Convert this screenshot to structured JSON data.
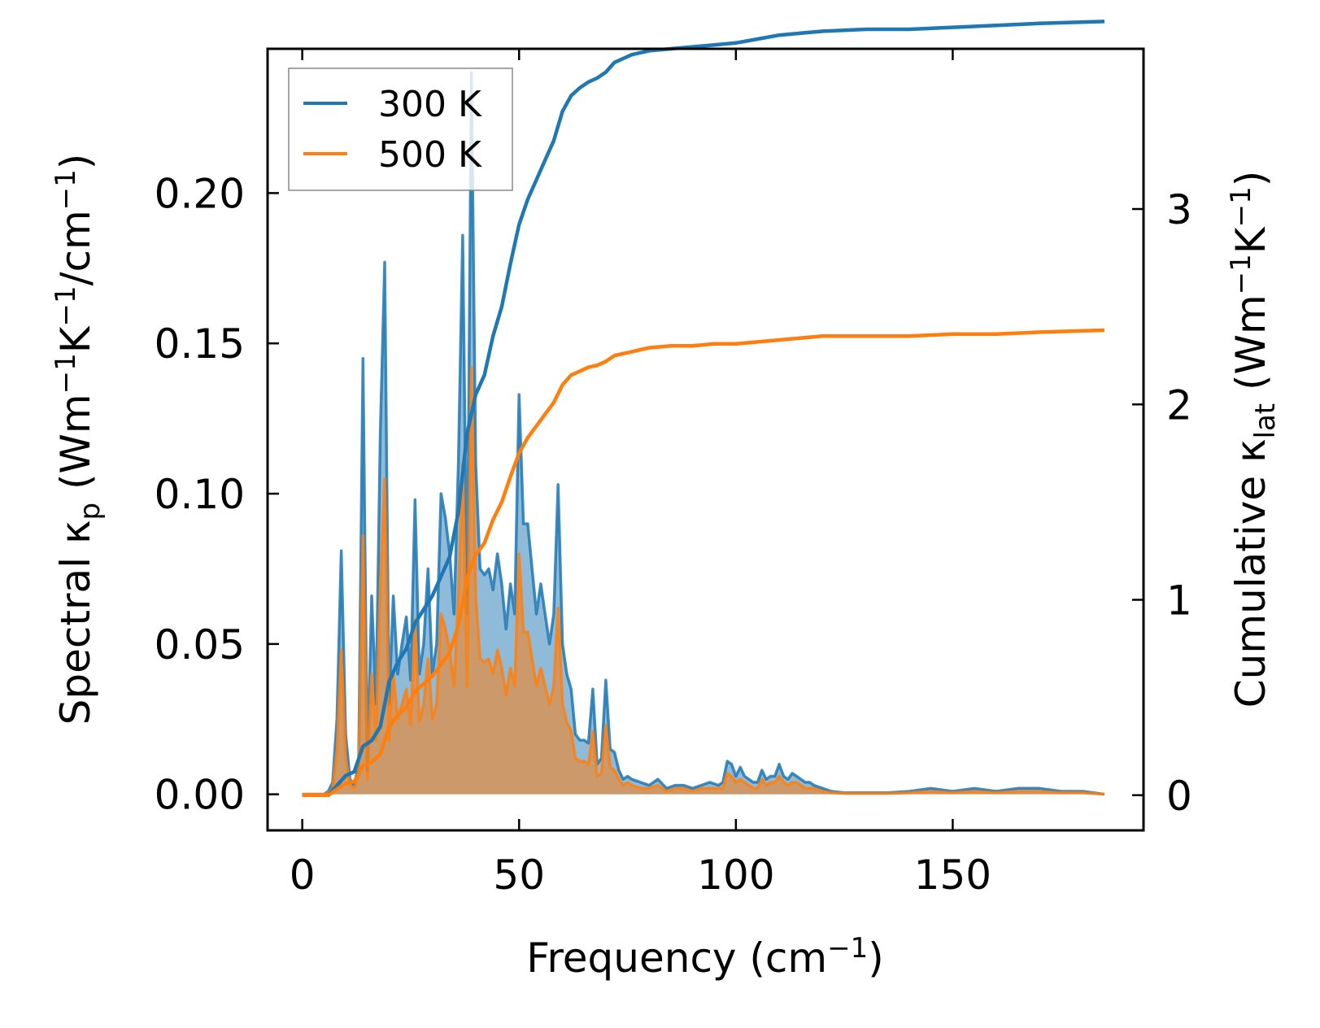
{
  "chart_data": {
    "type": "line",
    "title": "",
    "xlabel": "Frequency (cm",
    "xlabel_sup": "−1",
    "xlabel_end": ")",
    "ylabel_left": {
      "p1": "Spectral κ",
      "sub": "p",
      "p2": " (Wm",
      "sup1": "−1",
      "p3": "K",
      "sup2": "−1",
      "p4": "/cm",
      "sup3": "−1",
      "p5": ")"
    },
    "ylabel_right": {
      "p1": "Cumulative κ",
      "sub": "lat",
      "p2": " (Wm",
      "sup1": "−1",
      "p3": "K",
      "sup2": "−1",
      "p4": ")"
    },
    "xlim": [
      -8,
      194
    ],
    "ylim_left": [
      -0.012,
      0.248
    ],
    "ylim_right": [
      -0.18,
      3.82
    ],
    "xticks": [
      0,
      50,
      100,
      150
    ],
    "xtick_labels": [
      "0",
      "50",
      "100",
      "150"
    ],
    "yticks_left": [
      0.0,
      0.05,
      0.1,
      0.15,
      0.2
    ],
    "ytick_labels_left": [
      "0.00",
      "0.05",
      "0.10",
      "0.15",
      "0.20"
    ],
    "yticks_right": [
      0,
      1,
      2,
      3
    ],
    "ytick_labels_right": [
      "0",
      "1",
      "2",
      "3"
    ],
    "legend_position": "upper-left",
    "spectral_x": [
      0,
      1,
      2,
      3,
      4,
      5,
      6,
      7,
      8,
      9,
      10,
      11,
      12,
      13,
      14,
      15,
      16,
      17,
      18,
      19,
      20,
      21,
      22,
      23,
      24,
      25,
      26,
      27,
      28,
      29,
      30,
      31,
      32,
      33,
      34,
      35,
      36,
      37,
      38,
      39,
      40,
      41,
      42,
      43,
      44,
      45,
      46,
      47,
      48,
      49,
      50,
      51,
      52,
      53,
      54,
      55,
      56,
      57,
      58,
      59,
      60,
      61,
      62,
      63,
      64,
      65,
      66,
      67,
      68,
      69,
      70,
      71,
      72,
      73,
      74,
      75,
      76,
      78,
      80,
      82,
      84,
      86,
      88,
      90,
      92,
      94,
      96,
      97,
      98,
      99,
      100,
      101,
      102,
      103,
      104,
      105,
      106,
      107,
      108,
      109,
      110,
      111,
      112,
      113,
      114,
      115,
      116,
      117,
      118,
      120,
      122,
      125,
      130,
      135,
      140,
      145,
      150,
      155,
      160,
      165,
      170,
      175,
      180,
      185
    ],
    "cumulative_x": [
      0,
      6,
      8,
      10,
      12,
      14,
      16,
      18,
      20,
      22,
      24,
      26,
      28,
      30,
      32,
      34,
      36,
      38,
      40,
      42,
      44,
      46,
      48,
      50,
      52,
      54,
      56,
      58,
      60,
      62,
      64,
      66,
      68,
      70,
      72,
      74,
      76,
      78,
      80,
      85,
      90,
      95,
      100,
      105,
      110,
      115,
      120,
      130,
      140,
      150,
      160,
      170,
      185
    ],
    "series": [
      {
        "name": "300 K",
        "color": "#1f77b4",
        "spectral": [
          0,
          0,
          0,
          0,
          0,
          0,
          0.001,
          0.004,
          0.025,
          0.081,
          0.02,
          0.005,
          0.003,
          0.01,
          0.145,
          0.008,
          0.066,
          0.03,
          0.12,
          0.177,
          0.03,
          0.066,
          0.04,
          0.05,
          0.059,
          0.038,
          0.098,
          0.04,
          0.05,
          0.075,
          0.04,
          0.05,
          0.1,
          0.092,
          0.08,
          0.06,
          0.11,
          0.186,
          0.06,
          0.24,
          0.11,
          0.075,
          0.073,
          0.075,
          0.068,
          0.08,
          0.07,
          0.055,
          0.07,
          0.06,
          0.133,
          0.09,
          0.09,
          0.075,
          0.06,
          0.07,
          0.06,
          0.05,
          0.06,
          0.103,
          0.05,
          0.04,
          0.035,
          0.02,
          0.018,
          0.018,
          0.017,
          0.035,
          0.01,
          0.012,
          0.038,
          0.015,
          0.014,
          0.008,
          0.005,
          0.006,
          0.005,
          0.004,
          0.003,
          0.005,
          0.002,
          0.003,
          0.003,
          0.002,
          0.003,
          0.004,
          0.003,
          0.004,
          0.011,
          0.01,
          0.006,
          0.009,
          0.006,
          0.005,
          0.004,
          0.004,
          0.008,
          0.005,
          0.006,
          0.006,
          0.01,
          0.006,
          0.005,
          0.007,
          0.006,
          0.005,
          0.004,
          0.004,
          0.003,
          0.002,
          0.001,
          0.0005,
          0.0005,
          0.0005,
          0.001,
          0.002,
          0.001,
          0.002,
          0.001,
          0.002,
          0.002,
          0.001,
          0.001,
          0
        ],
        "cumulative": [
          0,
          0,
          0.05,
          0.1,
          0.12,
          0.25,
          0.28,
          0.35,
          0.58,
          0.68,
          0.75,
          0.88,
          0.95,
          1.02,
          1.12,
          1.22,
          1.45,
          1.85,
          2.05,
          2.15,
          2.35,
          2.5,
          2.72,
          2.92,
          3.05,
          3.15,
          3.25,
          3.35,
          3.5,
          3.58,
          3.62,
          3.65,
          3.67,
          3.7,
          3.75,
          3.77,
          3.79,
          3.8,
          3.81,
          3.82,
          3.83,
          3.84,
          3.85,
          3.87,
          3.89,
          3.9,
          3.91,
          3.92,
          3.92,
          3.93,
          3.94,
          3.95,
          3.96
        ]
      },
      {
        "name": "500 K",
        "color": "#ff7f0e",
        "spectral": [
          0,
          0,
          0,
          0,
          0,
          0,
          0.0005,
          0.002,
          0.015,
          0.048,
          0.012,
          0.003,
          0.002,
          0.006,
          0.086,
          0.005,
          0.04,
          0.018,
          0.07,
          0.105,
          0.018,
          0.04,
          0.025,
          0.03,
          0.035,
          0.023,
          0.058,
          0.024,
          0.03,
          0.045,
          0.025,
          0.03,
          0.06,
          0.055,
          0.048,
          0.036,
          0.066,
          0.11,
          0.036,
          0.142,
          0.066,
          0.045,
          0.044,
          0.045,
          0.04,
          0.048,
          0.042,
          0.033,
          0.042,
          0.036,
          0.08,
          0.054,
          0.054,
          0.045,
          0.036,
          0.042,
          0.036,
          0.03,
          0.036,
          0.062,
          0.03,
          0.024,
          0.021,
          0.012,
          0.011,
          0.011,
          0.01,
          0.021,
          0.006,
          0.007,
          0.023,
          0.009,
          0.008,
          0.005,
          0.003,
          0.004,
          0.003,
          0.002,
          0.002,
          0.003,
          0.001,
          0.002,
          0.002,
          0.001,
          0.002,
          0.002,
          0.002,
          0.002,
          0.007,
          0.006,
          0.004,
          0.005,
          0.004,
          0.003,
          0.002,
          0.002,
          0.005,
          0.003,
          0.004,
          0.004,
          0.006,
          0.004,
          0.003,
          0.004,
          0.004,
          0.003,
          0.002,
          0.002,
          0.002,
          0.001,
          0.0005,
          0.0003,
          0.0003,
          0.0003,
          0.0005,
          0.001,
          0.0005,
          0.001,
          0.0005,
          0.001,
          0.001,
          0.0005,
          0.0005,
          0
        ],
        "cumulative": [
          0,
          0,
          0.03,
          0.06,
          0.07,
          0.15,
          0.17,
          0.21,
          0.35,
          0.41,
          0.45,
          0.53,
          0.57,
          0.61,
          0.67,
          0.73,
          0.87,
          1.11,
          1.23,
          1.29,
          1.41,
          1.5,
          1.63,
          1.75,
          1.83,
          1.89,
          1.95,
          2.01,
          2.1,
          2.15,
          2.17,
          2.19,
          2.2,
          2.22,
          2.25,
          2.26,
          2.27,
          2.28,
          2.29,
          2.3,
          2.3,
          2.31,
          2.31,
          2.32,
          2.33,
          2.34,
          2.35,
          2.35,
          2.35,
          2.36,
          2.36,
          2.37,
          2.38
        ]
      }
    ]
  }
}
